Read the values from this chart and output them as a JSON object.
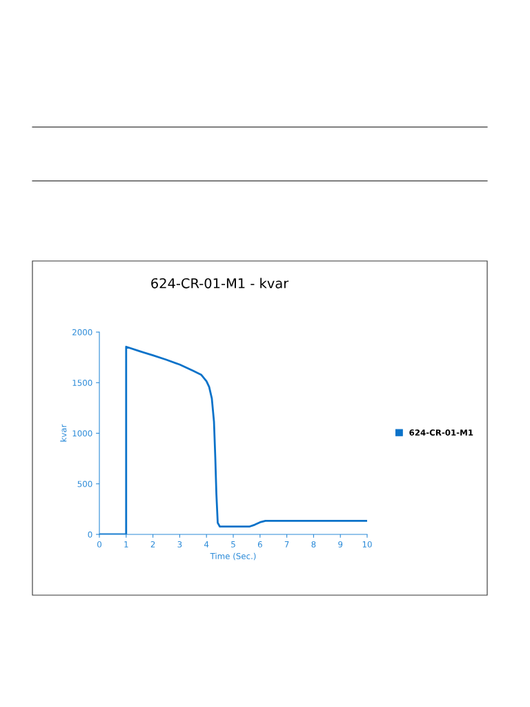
{
  "chart_data": {
    "type": "line",
    "title": "624-CR-01-M1 - kvar",
    "xlabel": "Time (Sec.)",
    "ylabel": "kvar",
    "xlim": [
      0,
      10
    ],
    "xticks": [
      0,
      1,
      2,
      3,
      4,
      5,
      6,
      7,
      8,
      9,
      10
    ],
    "ylim": [
      0,
      2000
    ],
    "yticks": [
      0,
      500,
      1000,
      1500,
      2000
    ],
    "grid": false,
    "legend": "right",
    "marker": "none",
    "line_style": "solid",
    "series": [
      {
        "name": "624-CR-01-M1",
        "color": "#0a72c9",
        "x": [
          0,
          1,
          1,
          1.5,
          2,
          2.5,
          3,
          3.5,
          3.8,
          4,
          4.1,
          4.2,
          4.28,
          4.33,
          4.37,
          4.42,
          4.5,
          5.6,
          5.8,
          6,
          6.2,
          10
        ],
        "values": [
          0,
          0,
          1855,
          1811,
          1770,
          1727,
          1679,
          1617,
          1579,
          1515,
          1458,
          1344,
          1116,
          752,
          400,
          114,
          77,
          77,
          95,
          120,
          134,
          134
        ]
      }
    ]
  }
}
